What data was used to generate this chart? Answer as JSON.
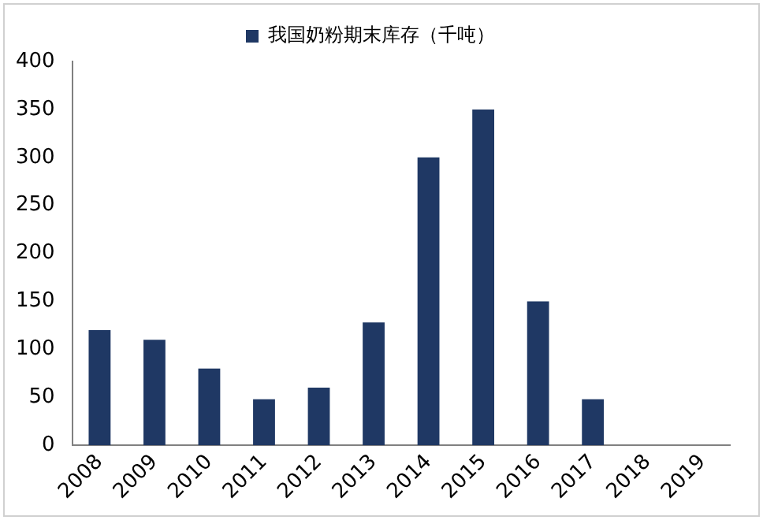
{
  "chart_data": {
    "type": "bar",
    "categories": [
      "2008",
      "2009",
      "2010",
      "2011",
      "2012",
      "2013",
      "2014",
      "2015",
      "2016",
      "2017",
      "2018",
      "2019"
    ],
    "series": [
      {
        "name": "我国奶粉期末库存（千吨）",
        "color": "#1f3864",
        "values": [
          120,
          110,
          80,
          48,
          60,
          128,
          300,
          350,
          150,
          48,
          null,
          null
        ]
      }
    ],
    "ylim": [
      0,
      400
    ],
    "yticks": [
      0,
      50,
      100,
      150,
      200,
      250,
      300,
      350,
      400
    ],
    "grid": false,
    "legend": "top"
  }
}
